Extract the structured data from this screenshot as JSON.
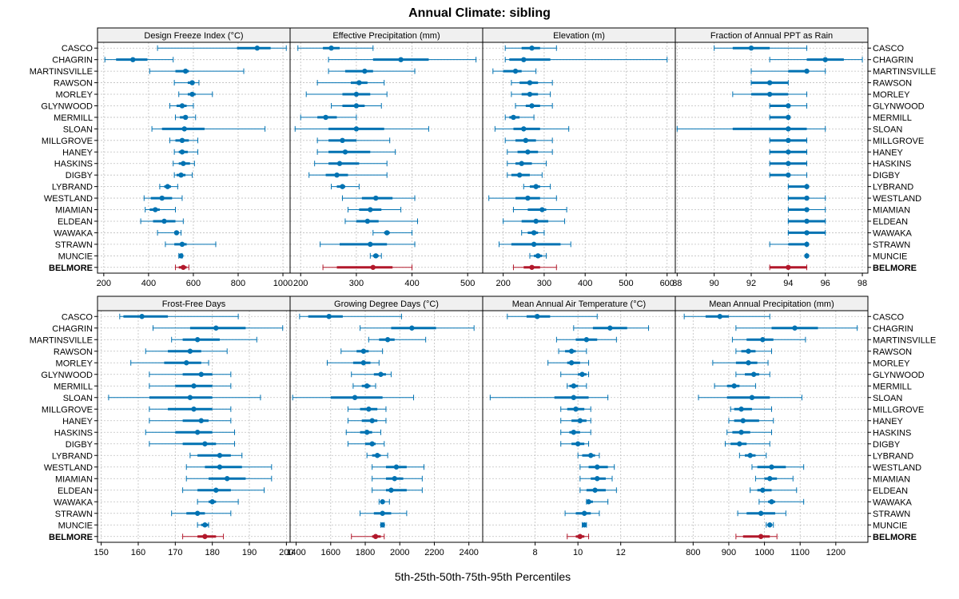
{
  "title": "Annual Climate: sibling",
  "xlabel": "5th-25th-50th-75th-95th Percentiles",
  "colors": {
    "series": "#0072b2",
    "highlight": "#b2182b",
    "strip": "#f0f0f0",
    "grid": "#bfbfbf"
  },
  "series_names": [
    "CASCO",
    "CHAGRIN",
    "MARTINSVILLE",
    "RAWSON",
    "MORLEY",
    "GLYNWOOD",
    "MERMILL",
    "SLOAN",
    "MILLGROVE",
    "HANEY",
    "HASKINS",
    "DIGBY",
    "LYBRAND",
    "WESTLAND",
    "MIAMIAN",
    "ELDEAN",
    "WAWAKA",
    "STRAWN",
    "MUNCIE",
    "BELMORE"
  ],
  "highlight_series": "BELMORE",
  "chart_data": [
    {
      "type": "percentile-dot",
      "title": "Design Freeze Index (°C)",
      "xlim": [
        172,
        1032
      ],
      "ticks": [
        200,
        400,
        600,
        800,
        1000
      ],
      "p5": [
        440,
        205,
        405,
        515,
        535,
        495,
        520,
        415,
        495,
        515,
        510,
        515,
        450,
        380,
        385,
        365,
        440,
        475,
        535,
        520
      ],
      "p25": [
        795,
        255,
        520,
        575,
        575,
        525,
        540,
        460,
        520,
        535,
        535,
        525,
        470,
        410,
        405,
        420,
        520,
        515,
        540,
        535
      ],
      "p50": [
        885,
        330,
        565,
        595,
        595,
        550,
        565,
        560,
        550,
        550,
        555,
        545,
        485,
        460,
        430,
        470,
        525,
        550,
        545,
        555
      ],
      "p75": [
        945,
        395,
        580,
        605,
        610,
        570,
        575,
        650,
        580,
        575,
        585,
        565,
        500,
        505,
        450,
        520,
        530,
        570,
        550,
        570
      ],
      "p95": [
        1015,
        510,
        825,
        625,
        685,
        600,
        610,
        920,
        620,
        620,
        605,
        595,
        530,
        550,
        520,
        555,
        545,
        700,
        550,
        580
      ]
    },
    {
      "type": "percentile-dot",
      "title": "Effective Precipitation (mm)",
      "xlim": [
        181,
        527
      ],
      "ticks": [
        200,
        300,
        400,
        500
      ],
      "p5": [
        195,
        250,
        250,
        230,
        210,
        255,
        200,
        190,
        230,
        230,
        225,
        215,
        255,
        275,
        285,
        280,
        330,
        235,
        325,
        240
      ],
      "p25": [
        240,
        330,
        280,
        290,
        275,
        275,
        230,
        250,
        250,
        250,
        250,
        245,
        265,
        310,
        305,
        300,
        350,
        270,
        330,
        265
      ],
      "p50": [
        255,
        380,
        315,
        305,
        300,
        300,
        245,
        300,
        275,
        280,
        270,
        265,
        275,
        335,
        325,
        320,
        355,
        325,
        335,
        330
      ],
      "p75": [
        270,
        430,
        330,
        320,
        325,
        315,
        265,
        350,
        300,
        325,
        305,
        285,
        280,
        365,
        345,
        340,
        360,
        355,
        340,
        365
      ],
      "p95": [
        330,
        515,
        405,
        350,
        355,
        345,
        300,
        430,
        360,
        370,
        355,
        355,
        305,
        405,
        380,
        410,
        400,
        405,
        345,
        400
      ]
    },
    {
      "type": "percentile-dot",
      "title": "Elevation (m)",
      "xlim": [
        150,
        620
      ],
      "ticks": [
        200,
        300,
        400,
        500,
        600
      ],
      "p5": [
        205,
        205,
        175,
        220,
        220,
        230,
        205,
        180,
        205,
        210,
        210,
        210,
        250,
        165,
        225,
        200,
        245,
        190,
        265,
        225
      ],
      "p25": [
        245,
        215,
        200,
        240,
        245,
        255,
        215,
        225,
        230,
        235,
        230,
        220,
        265,
        230,
        260,
        245,
        260,
        220,
        275,
        250
      ],
      "p50": [
        270,
        250,
        230,
        265,
        265,
        270,
        225,
        250,
        255,
        260,
        245,
        240,
        280,
        260,
        295,
        280,
        275,
        275,
        285,
        270
      ],
      "p75": [
        290,
        315,
        245,
        285,
        285,
        290,
        240,
        290,
        280,
        285,
        270,
        265,
        290,
        290,
        305,
        310,
        285,
        340,
        295,
        290
      ],
      "p95": [
        330,
        600,
        280,
        320,
        315,
        320,
        275,
        360,
        320,
        320,
        305,
        295,
        315,
        330,
        355,
        350,
        300,
        365,
        305,
        330
      ]
    },
    {
      "type": "percentile-dot",
      "title": "Fraction of Annual PPT as Rain",
      "xlim": [
        87.9,
        98.3
      ],
      "ticks": [
        88,
        90,
        92,
        94,
        96,
        98
      ],
      "p5": [
        90,
        93,
        92,
        92,
        91,
        93,
        93,
        88,
        93,
        93,
        93,
        93,
        94,
        94,
        94,
        94,
        94,
        93,
        95,
        93
      ],
      "p25": [
        91,
        95,
        94,
        92,
        92,
        93,
        93,
        91,
        93,
        93,
        93,
        93,
        94,
        94,
        94,
        94,
        94,
        94,
        95,
        93
      ],
      "p50": [
        92,
        96,
        95,
        93,
        93,
        94,
        94,
        94,
        94,
        94,
        94,
        94,
        95,
        95,
        95,
        95,
        95,
        95,
        95,
        94
      ],
      "p75": [
        93,
        97,
        95,
        94,
        94,
        94,
        94,
        95,
        95,
        95,
        95,
        94,
        95,
        95,
        95,
        96,
        96,
        95,
        95,
        95
      ],
      "p95": [
        95,
        98,
        96,
        94,
        95,
        95,
        94,
        96,
        95,
        95,
        95,
        95,
        95,
        96,
        96,
        96,
        96,
        95,
        95,
        95
      ]
    },
    {
      "type": "percentile-dot",
      "title": "Frost-Free Days",
      "xlim": [
        149,
        201
      ],
      "ticks": [
        150,
        160,
        170,
        180,
        190,
        200
      ],
      "p5": [
        155,
        164,
        169,
        162,
        158,
        163,
        163,
        152,
        163,
        163,
        162,
        163,
        174,
        173,
        173,
        172,
        176,
        169,
        176,
        172
      ],
      "p25": [
        156,
        174,
        172,
        168,
        167,
        172,
        170,
        163,
        168,
        172,
        170,
        172,
        176,
        178,
        179,
        176,
        179,
        173,
        177,
        176
      ],
      "p50": [
        161,
        181,
        176,
        174,
        173,
        177,
        175,
        174,
        175,
        177,
        176,
        178,
        182,
        182,
        184,
        181,
        180,
        176,
        178,
        178
      ],
      "p75": [
        168,
        189,
        182,
        177,
        177,
        180,
        180,
        180,
        180,
        179,
        180,
        181,
        185,
        188,
        189,
        185,
        181,
        178,
        179,
        181
      ],
      "p95": [
        187,
        199,
        192,
        184,
        179,
        185,
        185,
        193,
        185,
        185,
        186,
        186,
        188,
        196,
        196,
        194,
        187,
        185,
        179,
        183
      ]
    },
    {
      "type": "percentile-dot",
      "title": "Growing Degree Days (°C)",
      "xlim": [
        1365,
        2480
      ],
      "ticks": [
        1400,
        1600,
        1800,
        2000,
        2200,
        2400
      ],
      "p5": [
        1420,
        1770,
        1820,
        1660,
        1580,
        1720,
        1730,
        1380,
        1700,
        1700,
        1690,
        1700,
        1810,
        1840,
        1840,
        1840,
        1880,
        1770,
        1890,
        1720
      ],
      "p25": [
        1470,
        1950,
        1880,
        1750,
        1730,
        1850,
        1780,
        1600,
        1770,
        1780,
        1770,
        1800,
        1840,
        1920,
        1920,
        1920,
        1890,
        1850,
        1895,
        1840
      ],
      "p50": [
        1590,
        2070,
        1930,
        1790,
        1790,
        1890,
        1810,
        1740,
        1820,
        1840,
        1810,
        1840,
        1870,
        1980,
        1970,
        1950,
        1900,
        1900,
        1900,
        1860
      ],
      "p75": [
        1670,
        2210,
        1970,
        1820,
        1830,
        1920,
        1830,
        1900,
        1870,
        1870,
        1840,
        1860,
        1890,
        2040,
        2020,
        2040,
        1910,
        1950,
        1905,
        1890
      ],
      "p95": [
        2010,
        2430,
        2150,
        1900,
        1880,
        1950,
        1860,
        2080,
        1920,
        1920,
        1890,
        1910,
        1930,
        2140,
        2130,
        2130,
        1940,
        2040,
        1910,
        1910
      ]
    },
    {
      "type": "percentile-dot",
      "title": "Mean Annual Air Temperature (°C)",
      "xlim": [
        5.55,
        14.55
      ],
      "ticks": [
        8,
        10,
        12
      ],
      "p5": [
        6.7,
        9.8,
        9.0,
        9.1,
        8.6,
        9.2,
        9.5,
        5.9,
        9.2,
        9.2,
        9.2,
        9.2,
        10.0,
        10.1,
        10.1,
        10.1,
        10.4,
        9.4,
        10.2,
        9.5
      ],
      "p25": [
        7.6,
        10.7,
        9.9,
        9.4,
        9.5,
        10.0,
        9.6,
        8.9,
        9.5,
        9.7,
        9.6,
        9.7,
        10.2,
        10.5,
        10.6,
        10.4,
        10.4,
        9.9,
        10.25,
        9.9
      ],
      "p50": [
        8.1,
        11.5,
        10.4,
        9.7,
        9.7,
        10.2,
        9.8,
        9.8,
        9.9,
        10.1,
        9.8,
        10.0,
        10.6,
        10.9,
        10.9,
        10.8,
        10.5,
        10.3,
        10.3,
        10.1
      ],
      "p75": [
        8.7,
        12.3,
        10.9,
        9.9,
        10.1,
        10.4,
        10.0,
        10.5,
        10.3,
        10.4,
        10.1,
        10.3,
        10.8,
        11.4,
        11.3,
        11.3,
        10.7,
        10.6,
        10.35,
        10.3
      ],
      "p95": [
        10.9,
        13.3,
        11.8,
        10.4,
        10.5,
        10.5,
        10.4,
        11.4,
        10.6,
        10.6,
        10.6,
        10.5,
        11.0,
        11.7,
        11.6,
        11.8,
        11.4,
        11.0,
        10.4,
        10.5
      ]
    },
    {
      "type": "percentile-dot",
      "title": "Mean Annual Precipitation (mm)",
      "xlim": [
        750,
        1290
      ],
      "ticks": [
        800,
        900,
        1000,
        1100,
        1200
      ],
      "p5": [
        775,
        920,
        910,
        920,
        855,
        920,
        860,
        815,
        905,
        900,
        895,
        890,
        930,
        965,
        975,
        960,
        985,
        925,
        1005,
        920
      ],
      "p25": [
        835,
        1020,
        950,
        935,
        920,
        945,
        895,
        895,
        915,
        915,
        910,
        905,
        945,
        980,
        1000,
        980,
        1010,
        950,
        1010,
        940
      ],
      "p50": [
        875,
        1085,
        995,
        955,
        955,
        970,
        915,
        965,
        935,
        940,
        935,
        930,
        960,
        1020,
        1015,
        995,
        1020,
        990,
        1015,
        990
      ],
      "p75": [
        900,
        1150,
        1025,
        975,
        980,
        985,
        930,
        1015,
        965,
        985,
        960,
        950,
        975,
        1060,
        1035,
        1020,
        1030,
        1030,
        1020,
        1015
      ],
      "p95": [
        1015,
        1260,
        1115,
        1020,
        1010,
        1015,
        975,
        1105,
        1020,
        1025,
        1020,
        1015,
        1005,
        1110,
        1080,
        1090,
        1110,
        1060,
        1025,
        1035
      ]
    }
  ]
}
